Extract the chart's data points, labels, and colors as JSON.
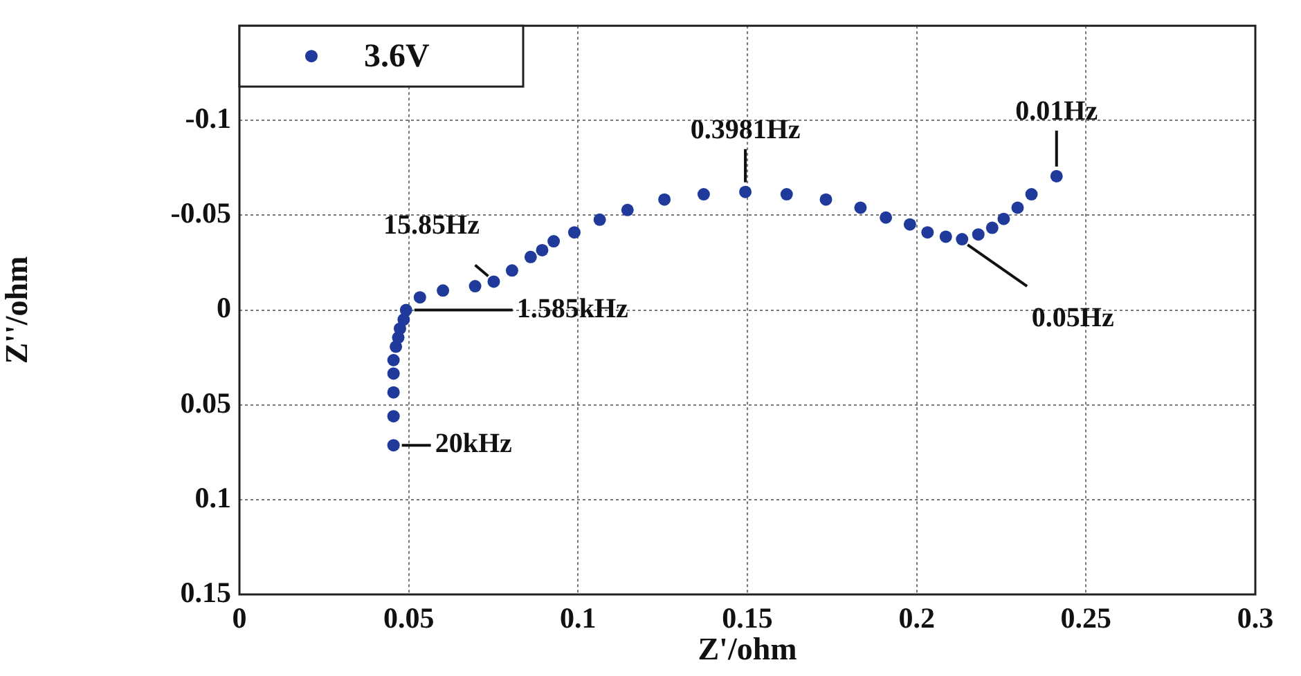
{
  "chart_data": {
    "type": "scatter",
    "xlabel": "Z'/ohm",
    "ylabel": "Z''/ohm",
    "xlim": [
      0,
      0.3
    ],
    "xticks": [
      0,
      0.05,
      0.1,
      0.15,
      0.2,
      0.25,
      0.3
    ],
    "ylim": [
      0.15,
      -0.15
    ],
    "yticks": [
      {
        "value": -0.15,
        "label": null
      },
      -0.1,
      -0.05,
      0,
      0.05,
      0.1,
      0.15
    ],
    "grid": true,
    "legend": "top left",
    "marker": "circle",
    "series": [
      {
        "name": "3.6V",
        "color": "#1f3a9a",
        "x": [
          0.0455,
          0.0455,
          0.0455,
          0.0455,
          0.0455,
          0.0462,
          0.0469,
          0.0474,
          0.0485,
          0.0492,
          0.0533,
          0.0601,
          0.0696,
          0.0751,
          0.0805,
          0.086,
          0.0894,
          0.0928,
          0.0989,
          0.1064,
          0.1146,
          0.1255,
          0.1371,
          0.1494,
          0.1616,
          0.1732,
          0.1834,
          0.1909,
          0.198,
          0.2032,
          0.2086,
          0.2134,
          0.2182,
          0.2223,
          0.2257,
          0.2298,
          0.2339,
          0.2413
        ],
        "values": [
          0.0713,
          0.056,
          0.0434,
          0.0335,
          0.0264,
          0.0193,
          0.0145,
          0.0098,
          0.005,
          0.0,
          -0.0067,
          -0.0103,
          -0.0126,
          -0.015,
          -0.0209,
          -0.028,
          -0.0316,
          -0.0363,
          -0.041,
          -0.0477,
          -0.0528,
          -0.0583,
          -0.0611,
          -0.0623,
          -0.0611,
          -0.0583,
          -0.054,
          -0.0488,
          -0.0452,
          -0.041,
          -0.0387,
          -0.0374,
          -0.0399,
          -0.0434,
          -0.0481,
          -0.054,
          -0.0611,
          -0.0706
        ]
      }
    ],
    "annotations": [
      {
        "text": "20kHz",
        "x": 0.0455,
        "y": 0.0713
      },
      {
        "text": "1.585kHz",
        "x": 0.0492,
        "y": 0.0
      },
      {
        "text": "15.85Hz",
        "x": 0.0751,
        "y": -0.015
      },
      {
        "text": "0.3981Hz",
        "x": 0.1494,
        "y": -0.0623
      },
      {
        "text": "0.05Hz",
        "x": 0.2134,
        "y": -0.0374
      },
      {
        "text": "0.01Hz",
        "x": 0.2413,
        "y": -0.0706
      }
    ]
  }
}
